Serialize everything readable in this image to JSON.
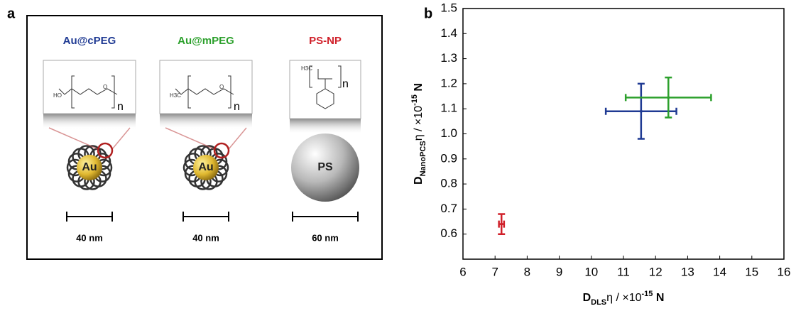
{
  "panel_a": {
    "letter": "a",
    "columns": [
      {
        "label": "Au@cPEG",
        "color": "#1f3a93",
        "structure": {
          "head": "HO",
          "atom": "O",
          "repeat": "n"
        },
        "core": "Au",
        "scale": "40 nm"
      },
      {
        "label": "Au@mPEG",
        "color": "#2ca02c",
        "structure": {
          "head": "H3C",
          "atom": "O",
          "repeat": "n"
        },
        "core": "Au",
        "scale": "40 nm"
      },
      {
        "label": "PS-NP",
        "color": "#d0202a",
        "structure": {
          "head": "H3C",
          "repeat": "n"
        },
        "core": "PS",
        "scale": "60 nm"
      }
    ]
  },
  "chart_data": {
    "type": "scatter",
    "letter": "b",
    "xlabel": {
      "main": "D",
      "sub": "DLS",
      "mid": "η / ×10",
      "sup": "-15",
      "end": " N"
    },
    "ylabel": {
      "main": "D",
      "sub": "NanoPCS",
      "mid": "η / ×10",
      "sup": "-15",
      "end": " N"
    },
    "xlim": [
      6,
      16
    ],
    "xticks": [
      6,
      7,
      8,
      9,
      10,
      11,
      12,
      13,
      14,
      15,
      16
    ],
    "ylim": [
      0.5,
      1.5
    ],
    "yticks": [
      {
        "value": 0.6,
        "label": "0.6"
      },
      {
        "value": 0.7,
        "label": "0.7"
      },
      {
        "value": 0.8,
        "label": "0.8"
      },
      {
        "value": 0.9,
        "label": "0.9"
      },
      {
        "value": 1.0,
        "label": "1.0"
      },
      {
        "value": 1.1,
        "label": "1.1"
      },
      {
        "value": 1.2,
        "label": "1.2"
      },
      {
        "value": 1.3,
        "label": "1.3"
      },
      {
        "value": 1.4,
        "label": "1.4"
      },
      {
        "value": 1.5,
        "label": "1.5"
      }
    ],
    "series": [
      {
        "color": "#1f3a93",
        "x": [
          11.55
        ],
        "y": [
          1.09
        ],
        "xerr": [
          1.1
        ],
        "yerr": [
          0.11
        ]
      },
      {
        "color": "#2ca02c",
        "x": [
          12.4
        ],
        "y": [
          1.145
        ],
        "xerr": [
          1.33
        ],
        "yerr": [
          0.08
        ]
      },
      {
        "color": "#d0202a",
        "x": [
          7.2
        ],
        "y": [
          0.64
        ],
        "xerr": [
          0.08
        ],
        "yerr": [
          0.04
        ]
      }
    ]
  }
}
